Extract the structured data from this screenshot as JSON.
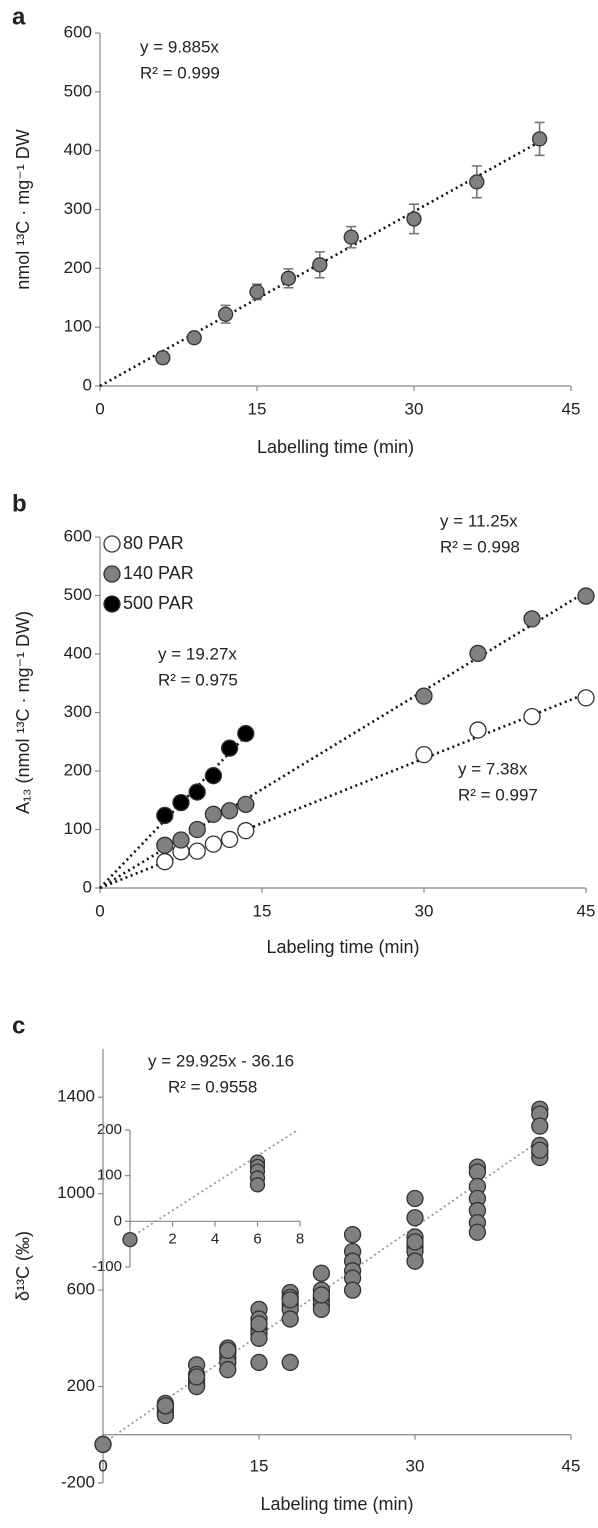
{
  "chart_data": [
    {
      "panel": "a",
      "type": "scatter",
      "xlabel": "Labelling time (min)",
      "ylabel": "nmol ¹³C · mg⁻¹ DW",
      "x": [
        6,
        9,
        12,
        15,
        18,
        21,
        24,
        30,
        36,
        42
      ],
      "y": [
        48,
        82,
        122,
        160,
        183,
        206,
        253,
        284,
        347,
        420
      ],
      "errors": [
        10,
        8,
        15,
        13,
        16,
        22,
        18,
        25,
        27,
        28
      ],
      "color": "#808080",
      "xlim": [
        0,
        45
      ],
      "xticks": [
        0,
        15,
        30,
        45
      ],
      "ylim": [
        0,
        600
      ],
      "yticks": [
        0,
        100,
        200,
        300,
        400,
        500,
        600
      ],
      "fit": {
        "slope": 9.885
      },
      "annotations": [
        "y = 9.885x",
        "R² = 0.999"
      ]
    },
    {
      "panel": "b",
      "type": "scatter",
      "xlabel": "Labeling time (min)",
      "ylabel": "A₁₃ (nmol ¹³C · mg⁻¹ DW)",
      "xlim": [
        0,
        45
      ],
      "xticks": [
        0,
        15,
        30,
        45
      ],
      "ylim": [
        0,
        600
      ],
      "yticks": [
        0,
        100,
        200,
        300,
        400,
        500,
        600
      ],
      "legend": "upper left",
      "series": [
        {
          "name": "80 PAR",
          "color": "#ffffff",
          "x": [
            6,
            7.5,
            9,
            10.5,
            12,
            13.5,
            30,
            35,
            40,
            45
          ],
          "y": [
            45,
            62,
            63,
            75,
            83,
            98,
            228,
            270,
            293,
            325
          ],
          "fit": {
            "slope": 7.38
          },
          "annotations": [
            "y = 7.38x",
            "R² = 0.997"
          ]
        },
        {
          "name": "140 PAR",
          "color": "#808080",
          "x": [
            6,
            7.5,
            9,
            10.5,
            12,
            13.5,
            30,
            35,
            40,
            45
          ],
          "y": [
            73,
            82,
            100,
            126,
            132,
            143,
            328,
            401,
            460,
            499
          ],
          "fit": {
            "slope": 11.25
          },
          "annotations": [
            "y = 11.25x",
            "R² = 0.998"
          ]
        },
        {
          "name": "500 PAR",
          "color": "#000000",
          "x": [
            6,
            7.5,
            9,
            10.5,
            12,
            13.5
          ],
          "y": [
            124,
            146,
            164,
            192,
            239,
            264
          ],
          "fit": {
            "slope": 19.27
          },
          "annotations": [
            "y = 19.27x",
            "R² = 0.975"
          ]
        }
      ]
    },
    {
      "panel": "c",
      "type": "scatter",
      "xlabel": "Labeling time (min)",
      "ylabel": "δ¹³C (‰)",
      "color": "#808080",
      "x": [
        0,
        0,
        6,
        6,
        6,
        6,
        6,
        9,
        9,
        9,
        9,
        9,
        9,
        12,
        12,
        12,
        12,
        12,
        12,
        15,
        15,
        15,
        15,
        15,
        15,
        15,
        18,
        18,
        18,
        18,
        18,
        18,
        18,
        21,
        21,
        21,
        21,
        21,
        21,
        24,
        24,
        24,
        24,
        24,
        24,
        30,
        30,
        30,
        30,
        30,
        30,
        30,
        36,
        36,
        36,
        36,
        36,
        36,
        36,
        42,
        42,
        42,
        42,
        42,
        42,
        42
      ],
      "y": [
        -40,
        -40,
        130,
        110,
        90,
        80,
        120,
        290,
        250,
        230,
        210,
        200,
        240,
        360,
        340,
        320,
        300,
        270,
        350,
        520,
        480,
        440,
        420,
        400,
        300,
        460,
        590,
        570,
        540,
        520,
        480,
        300,
        560,
        670,
        600,
        560,
        540,
        520,
        580,
        830,
        760,
        720,
        680,
        650,
        600,
        980,
        900,
        820,
        780,
        760,
        720,
        800,
        1110,
        1090,
        1030,
        980,
        930,
        880,
        840,
        1350,
        1330,
        1280,
        1200,
        1170,
        1150,
        1180
      ],
      "xlim": [
        0,
        45
      ],
      "xticks": [
        0,
        15,
        30,
        45
      ],
      "ylim": [
        -200,
        1600
      ],
      "yticks": [
        -200,
        200,
        600,
        1000,
        1400
      ],
      "fit": {
        "slope": 29.925,
        "intercept": -36.16
      },
      "annotations": [
        "y = 29.925x - 36.16",
        "R² = 0.9558"
      ],
      "inset": {
        "x": [
          0,
          6,
          6,
          6,
          6,
          6
        ],
        "y": [
          -40,
          130,
          120,
          110,
          95,
          80
        ],
        "xlim": [
          0,
          8
        ],
        "xticks": [
          0,
          2,
          4,
          6,
          8
        ],
        "ylim": [
          -100,
          200
        ],
        "yticks": [
          -100,
          0,
          100,
          200
        ]
      }
    }
  ]
}
